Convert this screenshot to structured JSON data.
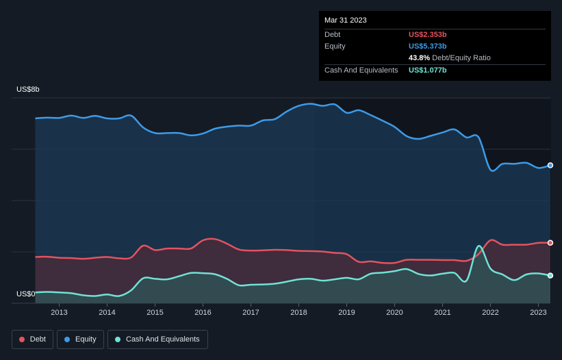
{
  "tooltip": {
    "date": "Mar 31 2023",
    "rows": [
      {
        "label": "Debt",
        "value": "US$2.353b",
        "color": "#e5535f"
      },
      {
        "label": "Equity",
        "value": "US$5.373b",
        "color": "#3d9be9"
      },
      {
        "label": "",
        "value": "43.8%",
        "suffix": "Debt/Equity Ratio",
        "color": "#ffffff"
      },
      {
        "label": "Cash And Equivalents",
        "value": "US$1.077b",
        "color": "#6fe3d6"
      }
    ]
  },
  "legend": [
    {
      "label": "Debt",
      "color": "#e5535f"
    },
    {
      "label": "Equity",
      "color": "#3d9be9"
    },
    {
      "label": "Cash And Equivalents",
      "color": "#6fe3d6"
    }
  ],
  "chart_data": {
    "type": "area",
    "ylabel_top": "US$8b",
    "ylabel_bottom": "US$0",
    "ylim": [
      0,
      8
    ],
    "xlim": [
      2012.45,
      2023.25
    ],
    "x_ticks": [
      "2013",
      "2014",
      "2015",
      "2016",
      "2017",
      "2018",
      "2019",
      "2020",
      "2021",
      "2022",
      "2023"
    ],
    "grid": true,
    "series": [
      {
        "name": "Equity",
        "color": "#3d9be9",
        "points": [
          [
            2012.5,
            7.2
          ],
          [
            2012.75,
            7.23
          ],
          [
            2013.0,
            7.22
          ],
          [
            2013.25,
            7.31
          ],
          [
            2013.5,
            7.22
          ],
          [
            2013.75,
            7.3
          ],
          [
            2014.0,
            7.2
          ],
          [
            2014.25,
            7.2
          ],
          [
            2014.5,
            7.31
          ],
          [
            2014.75,
            6.85
          ],
          [
            2015.0,
            6.63
          ],
          [
            2015.25,
            6.63
          ],
          [
            2015.5,
            6.63
          ],
          [
            2015.75,
            6.54
          ],
          [
            2016.0,
            6.61
          ],
          [
            2016.25,
            6.8
          ],
          [
            2016.5,
            6.88
          ],
          [
            2016.75,
            6.92
          ],
          [
            2017.0,
            6.92
          ],
          [
            2017.25,
            7.12
          ],
          [
            2017.5,
            7.17
          ],
          [
            2017.75,
            7.47
          ],
          [
            2018.0,
            7.69
          ],
          [
            2018.25,
            7.77
          ],
          [
            2018.5,
            7.69
          ],
          [
            2018.75,
            7.75
          ],
          [
            2019.0,
            7.42
          ],
          [
            2019.25,
            7.52
          ],
          [
            2019.5,
            7.33
          ],
          [
            2019.75,
            7.11
          ],
          [
            2020.0,
            6.87
          ],
          [
            2020.25,
            6.51
          ],
          [
            2020.5,
            6.4
          ],
          [
            2020.75,
            6.52
          ],
          [
            2021.0,
            6.65
          ],
          [
            2021.25,
            6.77
          ],
          [
            2021.5,
            6.46
          ],
          [
            2021.75,
            6.47
          ],
          [
            2022.0,
            5.2
          ],
          [
            2022.25,
            5.43
          ],
          [
            2022.5,
            5.43
          ],
          [
            2022.75,
            5.47
          ],
          [
            2023.0,
            5.27
          ],
          [
            2023.25,
            5.373
          ]
        ]
      },
      {
        "name": "Debt",
        "color": "#e5535f",
        "points": [
          [
            2012.5,
            1.8
          ],
          [
            2012.75,
            1.81
          ],
          [
            2013.0,
            1.77
          ],
          [
            2013.25,
            1.76
          ],
          [
            2013.5,
            1.73
          ],
          [
            2013.75,
            1.77
          ],
          [
            2014.0,
            1.8
          ],
          [
            2014.25,
            1.75
          ],
          [
            2014.5,
            1.78
          ],
          [
            2014.75,
            2.24
          ],
          [
            2015.0,
            2.07
          ],
          [
            2015.25,
            2.13
          ],
          [
            2015.5,
            2.13
          ],
          [
            2015.75,
            2.13
          ],
          [
            2016.0,
            2.45
          ],
          [
            2016.25,
            2.5
          ],
          [
            2016.5,
            2.32
          ],
          [
            2016.75,
            2.09
          ],
          [
            2017.0,
            2.05
          ],
          [
            2017.25,
            2.06
          ],
          [
            2017.5,
            2.08
          ],
          [
            2017.75,
            2.07
          ],
          [
            2018.0,
            2.04
          ],
          [
            2018.25,
            2.03
          ],
          [
            2018.5,
            2.01
          ],
          [
            2018.75,
            1.96
          ],
          [
            2019.0,
            1.91
          ],
          [
            2019.25,
            1.61
          ],
          [
            2019.5,
            1.63
          ],
          [
            2019.75,
            1.57
          ],
          [
            2020.0,
            1.57
          ],
          [
            2020.25,
            1.69
          ],
          [
            2020.5,
            1.69
          ],
          [
            2020.75,
            1.69
          ],
          [
            2021.0,
            1.68
          ],
          [
            2021.25,
            1.68
          ],
          [
            2021.5,
            1.65
          ],
          [
            2021.75,
            1.91
          ],
          [
            2022.0,
            2.45
          ],
          [
            2022.25,
            2.28
          ],
          [
            2022.5,
            2.28
          ],
          [
            2022.75,
            2.28
          ],
          [
            2023.0,
            2.35
          ],
          [
            2023.25,
            2.353
          ]
        ]
      },
      {
        "name": "Cash And Equivalents",
        "color": "#6fe3d6",
        "points": [
          [
            2012.5,
            0.42
          ],
          [
            2012.75,
            0.44
          ],
          [
            2013.0,
            0.42
          ],
          [
            2013.25,
            0.39
          ],
          [
            2013.5,
            0.31
          ],
          [
            2013.75,
            0.28
          ],
          [
            2014.0,
            0.34
          ],
          [
            2014.25,
            0.28
          ],
          [
            2014.5,
            0.5
          ],
          [
            2014.75,
            0.97
          ],
          [
            2015.0,
            0.95
          ],
          [
            2015.25,
            0.93
          ],
          [
            2015.5,
            1.05
          ],
          [
            2015.75,
            1.18
          ],
          [
            2016.0,
            1.17
          ],
          [
            2016.25,
            1.13
          ],
          [
            2016.5,
            0.95
          ],
          [
            2016.75,
            0.7
          ],
          [
            2017.0,
            0.72
          ],
          [
            2017.25,
            0.73
          ],
          [
            2017.5,
            0.76
          ],
          [
            2017.75,
            0.84
          ],
          [
            2018.0,
            0.93
          ],
          [
            2018.25,
            0.95
          ],
          [
            2018.5,
            0.88
          ],
          [
            2018.75,
            0.93
          ],
          [
            2019.0,
            0.99
          ],
          [
            2019.25,
            0.93
          ],
          [
            2019.5,
            1.15
          ],
          [
            2019.75,
            1.19
          ],
          [
            2020.0,
            1.25
          ],
          [
            2020.25,
            1.33
          ],
          [
            2020.5,
            1.14
          ],
          [
            2020.75,
            1.08
          ],
          [
            2021.0,
            1.15
          ],
          [
            2021.25,
            1.18
          ],
          [
            2021.5,
            0.88
          ],
          [
            2021.75,
            2.23
          ],
          [
            2022.0,
            1.35
          ],
          [
            2022.25,
            1.12
          ],
          [
            2022.5,
            0.9
          ],
          [
            2022.75,
            1.12
          ],
          [
            2023.0,
            1.16
          ],
          [
            2023.25,
            1.077
          ]
        ]
      }
    ]
  }
}
